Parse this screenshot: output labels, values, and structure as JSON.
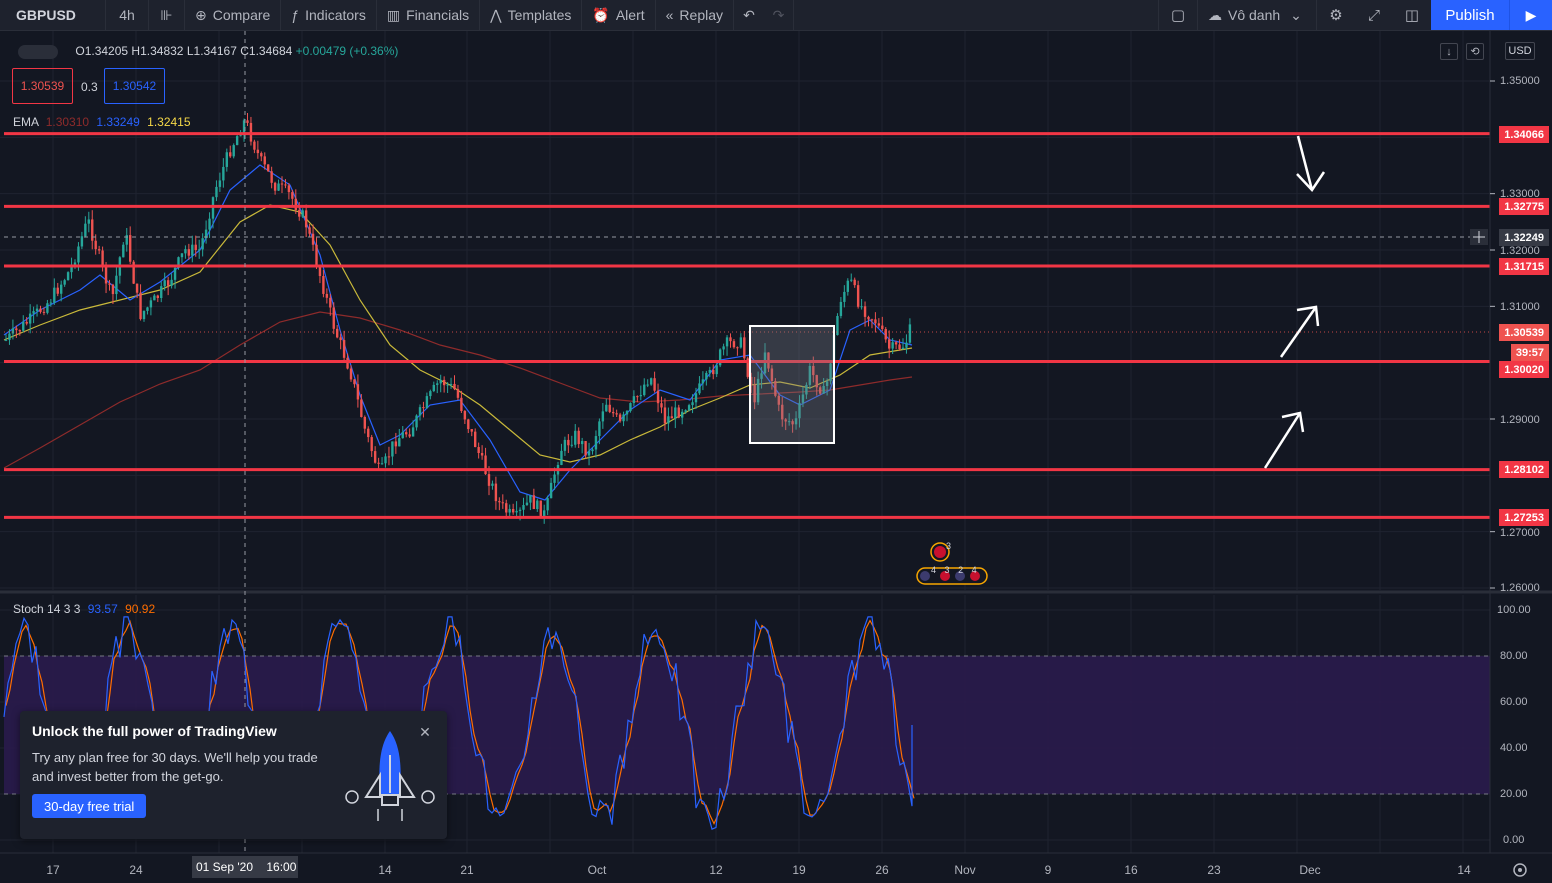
{
  "toolbar": {
    "symbol": "GBPUSD",
    "interval": "4h",
    "items": [
      {
        "label": "Compare",
        "icon": "plus-circle-icon"
      },
      {
        "label": "Indicators",
        "icon": "fx-icon"
      },
      {
        "label": "Financials",
        "icon": "bars-icon"
      },
      {
        "label": "Templates",
        "icon": "templates-icon"
      },
      {
        "label": "Alert",
        "icon": "alarm-clock-icon"
      },
      {
        "label": "Replay",
        "icon": "rewind-icon"
      }
    ],
    "layout_name": "Vô danh",
    "publish": "Publish"
  },
  "legend": {
    "ohlc": {
      "o_label": "O",
      "o": "1.34205",
      "h_label": "H",
      "h": "1.34832",
      "l_label": "L",
      "l": "1.34167",
      "c_label": "C",
      "c": "1.34684",
      "change": "+0.00479 (+0.36%)"
    },
    "sell": "1.30539",
    "spread": "0.3",
    "buy": "1.30542",
    "ema": {
      "label": "EMA",
      "v1": "1.30310",
      "v2": "1.33249",
      "v3": "1.32415"
    },
    "stoch": {
      "label": "Stoch 14 3 3",
      "k": "93.57",
      "d": "90.92"
    }
  },
  "price_axis": {
    "currency": "USD",
    "ticks": [
      "1.35000",
      "1.33000",
      "1.32000",
      "1.31000",
      "1.29000",
      "1.27000",
      "1.26000"
    ],
    "levels": [
      {
        "label": "1.34066",
        "value": 1.34066
      },
      {
        "label": "1.32775",
        "value": 1.32775
      },
      {
        "label": "1.31715",
        "value": 1.31715
      },
      {
        "label": "1.30020",
        "value": 1.3002
      },
      {
        "label": "1.28102",
        "value": 1.28102
      },
      {
        "label": "1.27253",
        "value": 1.27253
      }
    ],
    "crosshair": "1.32249",
    "current": "1.30539",
    "countdown": "39:57",
    "level_color": "#f23645"
  },
  "stoch_axis": {
    "ticks": [
      "100.00",
      "80.00",
      "60.00",
      "40.00",
      "20.00",
      "0.00"
    ]
  },
  "time_axis": {
    "labels": [
      "17",
      "24",
      "14",
      "21",
      "Oct",
      "12",
      "19",
      "26",
      "Nov",
      "9",
      "16",
      "23",
      "Dec",
      "14"
    ],
    "crosshair_date": "01 Sep '20",
    "crosshair_time": "16:00"
  },
  "events": {
    "top_count": "3",
    "bottom_counts": [
      "4",
      "3",
      "2",
      "4"
    ]
  },
  "promo": {
    "title": "Unlock the full power of TradingView",
    "text": "Try any plan free for 30 days. We'll help you trade and invest better from the get-go.",
    "button": "30-day free trial"
  },
  "colors": {
    "up": "#26a69a",
    "down": "#ef5350",
    "ema_fast": "#2962ff",
    "ema_mid": "#c9b93a",
    "ema_slow": "#8e2b2b",
    "stoch_k": "#2962ff",
    "stoch_d": "#ff6d00",
    "stoch_band": "#2a1b4d"
  }
}
